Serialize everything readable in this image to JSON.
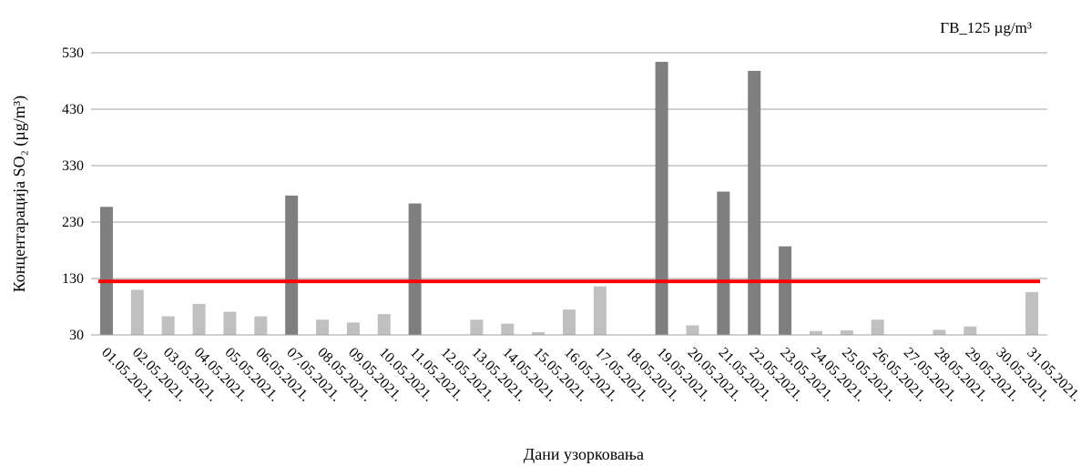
{
  "chart_data": {
    "type": "bar",
    "title": "",
    "xlabel": "Дани узорковања",
    "ylabel": "Концентарација SO₂ (µg/m³)",
    "ylim": [
      30,
      530
    ],
    "yticks": [
      30,
      130,
      230,
      330,
      430,
      530
    ],
    "grid": true,
    "legend_position": "top-right",
    "limit_label": "ГВ_125 µg/m³",
    "limit_value": 125,
    "colors": {
      "above_limit": "#7f7f7f",
      "below_limit": "#c0c0c0",
      "limit_line": "#ff0000",
      "grid": "#a0a0a0"
    },
    "categories": [
      "01.05.2021.",
      "02.05.2021.",
      "03.05.2021.",
      "04.05.2021.",
      "05.05.2021.",
      "06.05.2021.",
      "07.05.2021.",
      "08.05.2021.",
      "09.05.2021.",
      "10.05.2021.",
      "11.05.2021.",
      "12.05.2021.",
      "13.05.2021.",
      "14.05.2021.",
      "15.05.2021.",
      "16.05.2021.",
      "17.05.2021.",
      "18.05.2021.",
      "19.05.2021.",
      "20.05.2021.",
      "21.05.2021.",
      "22.05.2021.",
      "23.05.2021.",
      "24.05.2021.",
      "25.05.2021.",
      "26.05.2021.",
      "27.05.2021.",
      "28.05.2021.",
      "29.05.2021.",
      "30.05.2021.",
      "31.05.2021."
    ],
    "values": [
      257,
      110,
      63,
      85,
      71,
      63,
      277,
      57,
      52,
      67,
      263,
      29,
      57,
      50,
      35,
      75,
      116,
      29,
      514,
      47,
      284,
      498,
      187,
      37,
      38,
      57,
      29,
      39,
      45,
      29,
      106
    ]
  }
}
